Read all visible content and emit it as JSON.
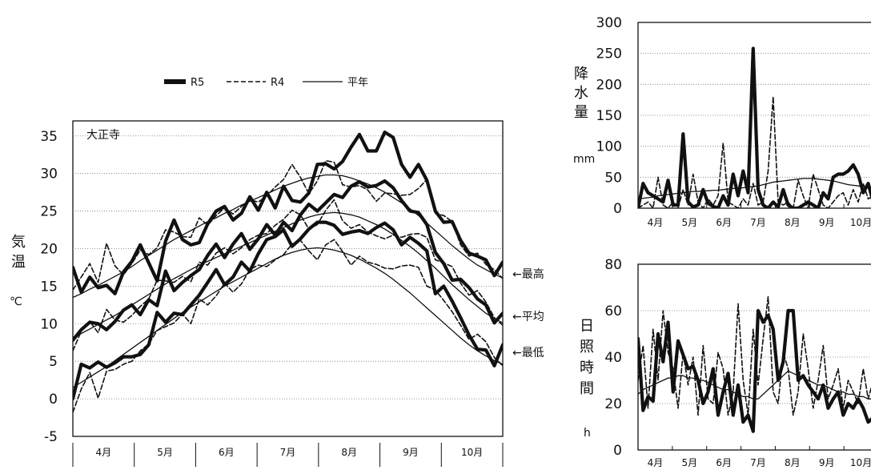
{
  "chart_data": [
    {
      "type": "line",
      "station": "大正寺",
      "ylabel": [
        "気",
        "温",
        "℃"
      ],
      "ylim": [
        -5,
        37
      ],
      "yticks": [
        35,
        30,
        25,
        20,
        15,
        10,
        5,
        0,
        -5
      ],
      "months": [
        "4月",
        "5月",
        "6月",
        "7月",
        "8月",
        "9月",
        "10月"
      ],
      "legend": [
        {
          "name": "R5",
          "style": "bold"
        },
        {
          "name": "R4",
          "style": "dashed"
        },
        {
          "name": "平年",
          "style": "thin"
        }
      ],
      "row_labels": [
        "←最高",
        "←平均",
        "←最低"
      ],
      "series": [
        {
          "name": "R5 最高",
          "style": "bold",
          "values": [
            17.5,
            14.2,
            16.2,
            14.8,
            15.1,
            14.0,
            16.9,
            18.3,
            20.5,
            18.1,
            15.7,
            21.0,
            23.8,
            21.2,
            20.5,
            20.8,
            23.3,
            25.0,
            25.6,
            23.8,
            24.7,
            26.9,
            25.1,
            27.5,
            25.4,
            28.3,
            26.4,
            26.2,
            27.4,
            31.2,
            31.3,
            30.6,
            31.6,
            33.5,
            35.2,
            33.0,
            33.0,
            35.5,
            34.8,
            31.2,
            29.5,
            31.2,
            29.1,
            25.0,
            23.5,
            23.6,
            21.1,
            19.4,
            19.0,
            18.5,
            16.4,
            18.2
          ]
        },
        {
          "name": "R5 平均",
          "style": "bold",
          "values": [
            7.8,
            9.2,
            10.2,
            10.0,
            9.2,
            10.3,
            11.8,
            12.5,
            11.2,
            13.2,
            12.4,
            17.0,
            14.4,
            15.5,
            16.4,
            17.2,
            19.1,
            20.6,
            18.8,
            20.6,
            22.0,
            19.9,
            21.3,
            23.2,
            21.8,
            23.5,
            22.4,
            24.5,
            25.9,
            25.0,
            26.1,
            27.2,
            26.8,
            28.3,
            28.9,
            28.2,
            28.4,
            29.0,
            28.1,
            26.4,
            25.0,
            24.8,
            23.2,
            19.5,
            18.0,
            15.8,
            15.9,
            14.8,
            13.3,
            12.5,
            10.1,
            11.4
          ]
        },
        {
          "name": "R5 最低",
          "style": "bold",
          "values": [
            0.0,
            4.6,
            4.1,
            4.9,
            4.2,
            4.8,
            5.6,
            5.6,
            5.9,
            7.2,
            11.5,
            10.2,
            11.4,
            11.2,
            12.5,
            13.8,
            15.5,
            17.2,
            15.2,
            16.2,
            18.2,
            17.0,
            19.3,
            21.2,
            21.6,
            22.5,
            20.3,
            21.3,
            22.6,
            23.5,
            23.5,
            23.1,
            21.9,
            22.2,
            22.4,
            22.0,
            22.8,
            23.4,
            22.5,
            20.5,
            21.5,
            20.7,
            19.7,
            14.0,
            15.0,
            13.0,
            10.8,
            8.5,
            6.6,
            6.5,
            4.4,
            7.2
          ]
        },
        {
          "name": "R4 最高",
          "style": "dashed",
          "values": [
            14.5,
            16.2,
            18.0,
            15.5,
            20.7,
            17.7,
            16.5,
            18.0,
            19.8,
            19.2,
            20.1,
            22.5,
            22.2,
            21.6,
            21.5,
            24.1,
            23.1,
            24.4,
            25.4,
            24.6,
            25.6,
            26.5,
            26.2,
            27.0,
            28.2,
            29.2,
            31.2,
            29.5,
            27.3,
            29.0,
            31.7,
            31.5,
            28.5,
            28.2,
            28.4,
            27.8,
            26.3,
            27.4,
            27.3,
            27.1,
            27.2,
            28.0,
            29.2,
            24.7,
            24.4,
            23.6,
            20.5,
            19.0,
            19.4,
            17.9,
            17.2,
            16.0
          ]
        },
        {
          "name": "R4 平均",
          "style": "dashed",
          "values": [
            6.4,
            9.0,
            10.3,
            8.8,
            11.9,
            10.5,
            10.2,
            11.1,
            12.3,
            13.3,
            15.8,
            15.7,
            15.5,
            16.3,
            15.6,
            18.2,
            17.8,
            19.4,
            20.1,
            19.3,
            20.1,
            21.2,
            21.8,
            22.0,
            23.1,
            23.9,
            25.1,
            24.5,
            22.6,
            23.2,
            25.1,
            26.5,
            23.7,
            22.7,
            23.2,
            22.2,
            21.7,
            21.3,
            21.8,
            21.5,
            21.9,
            22.0,
            21.5,
            18.5,
            18.1,
            17.6,
            15.4,
            13.8,
            14.4,
            12.9,
            10.8,
            9.8
          ]
        },
        {
          "name": "R4 最低",
          "style": "dashed",
          "values": [
            -1.8,
            1.3,
            3.5,
            0.1,
            3.7,
            3.9,
            4.6,
            5.0,
            6.4,
            7.3,
            9.1,
            9.6,
            10.1,
            11.3,
            10.0,
            13.3,
            12.5,
            13.7,
            15.4,
            14.2,
            15.3,
            17.2,
            17.8,
            17.6,
            18.5,
            19.2,
            20.6,
            21.1,
            19.7,
            18.5,
            20.5,
            21.2,
            19.6,
            17.8,
            19.0,
            18.2,
            17.9,
            17.4,
            17.3,
            17.7,
            17.8,
            17.5,
            15.0,
            14.5,
            13.1,
            11.6,
            9.8,
            7.9,
            8.6,
            7.6,
            5.5,
            4.4
          ]
        },
        {
          "name": "平年 最高",
          "style": "thin",
          "values": [
            13.5,
            14.0,
            14.6,
            15.1,
            15.7,
            16.3,
            16.9,
            17.6,
            18.4,
            19.1,
            19.8,
            20.5,
            21.2,
            21.8,
            22.4,
            23.0,
            23.6,
            24.1,
            24.7,
            25.2,
            25.8,
            26.3,
            26.8,
            27.3,
            27.8,
            28.3,
            28.7,
            29.1,
            29.4,
            29.6,
            29.8,
            29.8,
            29.7,
            29.4,
            29.0,
            28.6,
            28.1,
            27.5,
            26.8,
            26.1,
            25.3,
            24.4,
            23.4,
            22.4,
            21.4,
            20.4,
            19.5,
            18.6,
            17.8,
            17.2,
            16.6,
            16.1
          ]
        },
        {
          "name": "平年 平均",
          "style": "thin",
          "values": [
            8.2,
            8.7,
            9.3,
            9.9,
            10.5,
            11.1,
            11.8,
            12.5,
            13.2,
            13.9,
            14.6,
            15.3,
            16.0,
            16.6,
            17.2,
            17.8,
            18.3,
            18.8,
            19.3,
            19.8,
            20.3,
            20.8,
            21.3,
            21.8,
            22.3,
            22.8,
            23.3,
            23.8,
            24.2,
            24.5,
            24.7,
            24.8,
            24.7,
            24.5,
            24.2,
            23.7,
            23.2,
            22.6,
            21.9,
            21.1,
            20.3,
            19.4,
            18.4,
            17.4,
            16.3,
            15.2,
            14.2,
            13.2,
            12.3,
            11.4,
            10.7,
            10.1
          ]
        },
        {
          "name": "平年 最低",
          "style": "thin",
          "values": [
            1.5,
            2.2,
            2.9,
            3.6,
            4.3,
            5.1,
            5.9,
            6.7,
            7.5,
            8.3,
            9.1,
            9.9,
            10.7,
            11.5,
            12.2,
            12.9,
            13.6,
            14.3,
            15.0,
            15.6,
            16.2,
            16.8,
            17.4,
            18.0,
            18.6,
            19.1,
            19.5,
            19.8,
            20.0,
            20.1,
            20.0,
            19.8,
            19.5,
            19.1,
            18.6,
            18.0,
            17.4,
            16.7,
            15.9,
            15.0,
            14.1,
            13.1,
            12.1,
            11.1,
            10.1,
            9.1,
            8.1,
            7.2,
            6.4,
            5.7,
            5.1,
            4.6
          ]
        }
      ]
    },
    {
      "type": "line",
      "ylabel": [
        "降",
        "水",
        "量",
        "mm"
      ],
      "ylim": [
        0,
        300
      ],
      "yticks": [
        300,
        250,
        200,
        150,
        100,
        50,
        0
      ],
      "months": [
        "4月",
        "5月",
        "6月",
        "7月",
        "8月",
        "9月",
        "10月"
      ],
      "series": [
        {
          "name": "R5",
          "style": "bold",
          "values": [
            0,
            40,
            25,
            20,
            15,
            10,
            45,
            5,
            5,
            120,
            10,
            2,
            5,
            30,
            8,
            3,
            0,
            20,
            5,
            55,
            20,
            60,
            25,
            258,
            30,
            5,
            0,
            10,
            2,
            30,
            5,
            0,
            0,
            5,
            10,
            5,
            0,
            25,
            15,
            50,
            55,
            55,
            60,
            70,
            55,
            25,
            40,
            10,
            5
          ]
        },
        {
          "name": "R4",
          "style": "dashed",
          "values": [
            0,
            5,
            10,
            0,
            50,
            5,
            0,
            10,
            0,
            30,
            5,
            55,
            10,
            0,
            15,
            5,
            20,
            105,
            10,
            5,
            0,
            15,
            5,
            40,
            5,
            10,
            60,
            180,
            10,
            5,
            10,
            0,
            45,
            20,
            0,
            55,
            30,
            5,
            0,
            10,
            20,
            25,
            5,
            30,
            10,
            40,
            15,
            20,
            10
          ]
        },
        {
          "name": "平年",
          "style": "thin",
          "values": [
            15,
            16,
            17,
            18,
            20,
            21,
            22,
            23,
            24,
            25,
            26,
            27,
            27,
            28,
            28,
            29,
            29,
            30,
            31,
            32,
            32,
            33,
            34,
            35,
            36,
            38,
            40,
            42,
            43,
            44,
            45,
            46,
            47,
            48,
            48,
            48,
            47,
            46,
            45,
            44,
            42,
            40,
            38,
            37,
            36,
            35,
            34,
            34,
            33
          ]
        }
      ]
    },
    {
      "type": "line",
      "ylabel": [
        "日",
        "照",
        "時",
        "間",
        "h"
      ],
      "ylim": [
        0,
        80
      ],
      "yticks": [
        80,
        60,
        40,
        20,
        0
      ],
      "months": [
        "4月",
        "5月",
        "6月",
        "7月",
        "8月",
        "9月",
        "10月"
      ],
      "series": [
        {
          "name": "R5",
          "style": "bold",
          "values": [
            48,
            17,
            23,
            21,
            50,
            38,
            55,
            25,
            47,
            41,
            35,
            36,
            30,
            20,
            25,
            35,
            15,
            25,
            33,
            15,
            28,
            12,
            15,
            8,
            60,
            55,
            58,
            52,
            30,
            38,
            60,
            60,
            30,
            32,
            28,
            25,
            22,
            28,
            18,
            22,
            25,
            15,
            20,
            18,
            22,
            18,
            12,
            14,
            20
          ]
        },
        {
          "name": "R4",
          "style": "dashed",
          "values": [
            30,
            45,
            18,
            52,
            30,
            60,
            42,
            35,
            18,
            42,
            28,
            40,
            15,
            45,
            22,
            20,
            42,
            35,
            15,
            25,
            63,
            30,
            15,
            52,
            28,
            48,
            66,
            25,
            20,
            42,
            35,
            15,
            25,
            50,
            35,
            18,
            30,
            45,
            22,
            28,
            35,
            18,
            30,
            25,
            20,
            35,
            22,
            30,
            18
          ]
        },
        {
          "name": "平年",
          "style": "thin",
          "values": [
            24,
            26,
            27,
            28,
            29,
            30,
            31,
            31,
            32,
            32,
            31,
            31,
            30,
            30,
            29,
            28,
            27,
            26,
            26,
            25,
            24,
            23,
            23,
            22,
            22,
            24,
            26,
            28,
            30,
            32,
            34,
            33,
            32,
            31,
            30,
            29,
            28,
            28,
            27,
            26,
            25,
            25,
            24,
            24,
            23,
            23,
            22,
            22,
            22
          ]
        }
      ]
    }
  ]
}
